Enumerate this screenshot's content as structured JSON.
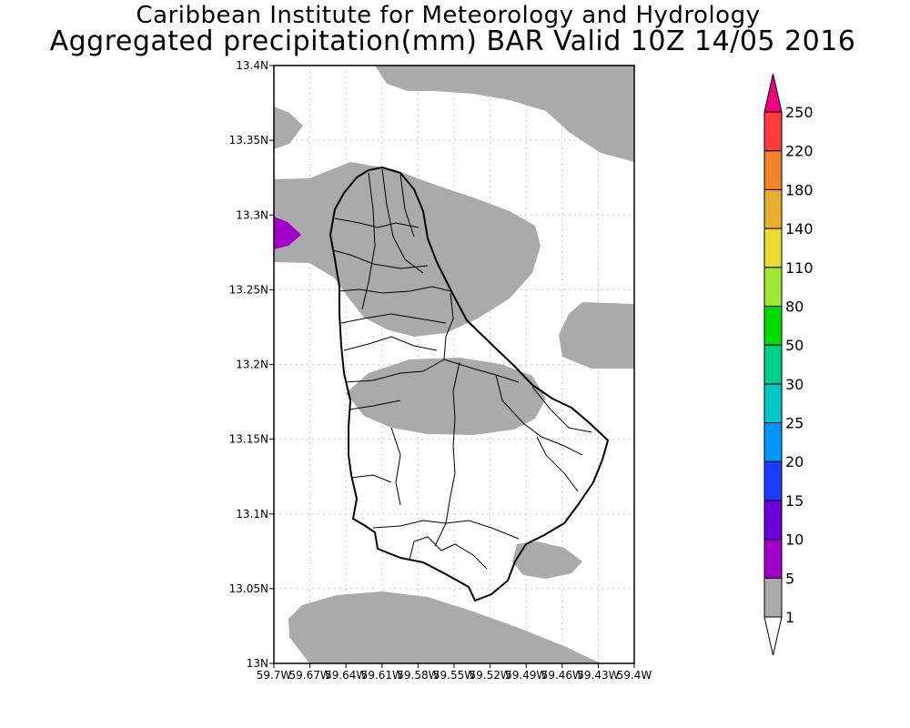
{
  "title": {
    "line1": "Caribbean Institute for Meteorology and Hydrology",
    "line2": "Aggregated precipitation(mm) BAR Valid 10Z 14/05 2016"
  },
  "map": {
    "region": "Barbados",
    "lat_range": [
      13.0,
      13.4
    ],
    "lon_range": [
      -59.7,
      -59.4
    ],
    "lat_ticks": [
      "13.4N",
      "13.35N",
      "13.3N",
      "13.25N",
      "13.2N",
      "13.15N",
      "13.1N",
      "13.05N",
      "13N"
    ],
    "lon_ticks": [
      "59.7W",
      "59.67W",
      "59.64W",
      "59.61W",
      "59.58W",
      "59.55W",
      "59.52W",
      "59.49W",
      "59.46W",
      "59.43W",
      "59.4W"
    ],
    "grid": "dotted",
    "shaded_levels_present": [
      "1-5",
      "5-10"
    ]
  },
  "colorbar": {
    "levels": [
      "1",
      "5",
      "10",
      "15",
      "20",
      "25",
      "30",
      "50",
      "80",
      "110",
      "140",
      "180",
      "220",
      "250"
    ],
    "colors": [
      "#ffffff",
      "#aaaaaa",
      "#a000c8",
      "#6e00dc",
      "#1e3cff",
      "#0096ff",
      "#00c8c8",
      "#00d28c",
      "#00dc00",
      "#a0e632",
      "#e6dc32",
      "#e6af2d",
      "#f08228",
      "#fa3c3c",
      "#f00082"
    ]
  }
}
